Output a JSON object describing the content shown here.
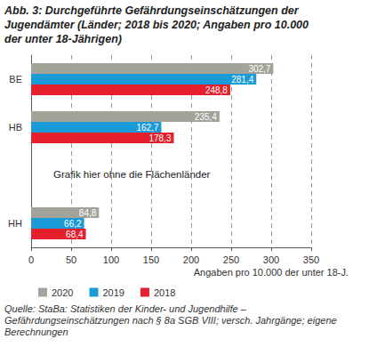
{
  "chart_data": {
    "type": "bar",
    "orientation": "horizontal",
    "title": "Abb. 3: Durchgeführte Gefährdungseinschätzungen der Jugendämter (Länder; 2018 bis 2020; Angaben pro 10.000 der unter 18-Jährigen)",
    "categories": [
      "BE",
      "HB",
      null,
      "HH"
    ],
    "series": [
      {
        "name": "2020",
        "color": "#a3a39a",
        "values": [
          302.7,
          235.4,
          null,
          84.8
        ],
        "value_labels": [
          "302,7",
          "235,4",
          null,
          "84,8"
        ]
      },
      {
        "name": "2019",
        "color": "#1a9ad6",
        "values": [
          281.4,
          162.7,
          null,
          66.2
        ],
        "value_labels": [
          "281,4",
          "162,7",
          null,
          "66,2"
        ]
      },
      {
        "name": "2018",
        "color": "#e51f2b",
        "values": [
          248.8,
          178.3,
          null,
          68.4
        ],
        "value_labels": [
          "248,8",
          "178,3",
          null,
          "68,4"
        ]
      }
    ],
    "xlim": [
      0,
      350
    ],
    "xticks": [
      0,
      50,
      100,
      150,
      200,
      250,
      300,
      350
    ],
    "xlabel": "Angaben pro 10.000 der unter 18-J.",
    "annotations": [
      "Grafik hier ohne die Flächenländer"
    ],
    "source": "Quelle: StaBa: Statistiken der Kinder- und Jugendhilfe – Gefährdungseinschätzungen nach § 8a SGB VIII; versch. Jahrgänge; eigene Berechnungen",
    "grid": true,
    "data_labels": true,
    "legend": "bottom"
  }
}
